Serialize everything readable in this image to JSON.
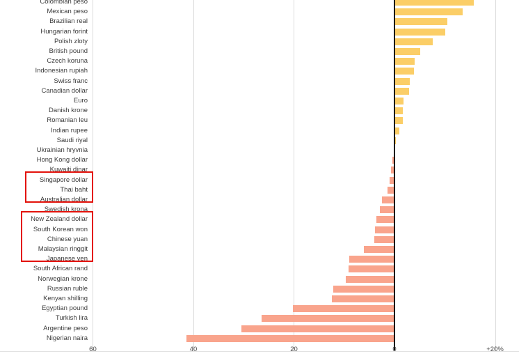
{
  "chart_data": {
    "type": "bar",
    "orientation": "horizontal",
    "unit_suffix_on_last_tick": "+20%",
    "categories": [
      "Colombian peso",
      "Mexican peso",
      "Brazilian real",
      "Hungarian forint",
      "Polish zloty",
      "British pound",
      "Czech koruna",
      "Indonesian rupiah",
      "Swiss franc",
      "Canadian dollar",
      "Euro",
      "Danish krone",
      "Romanian leu",
      "Indian rupee",
      "Saudi riyal",
      "Ukrainian hryvnia",
      "Hong Kong dollar",
      "Kuwaiti dinar",
      "Singapore dollar",
      "Thai baht",
      "Australian dollar",
      "Swedish krona",
      "New Zealand dollar",
      "South Korean won",
      "Chinese yuan",
      "Malaysian ringgit",
      "Japanese yen",
      "South African rand",
      "Norwegian krone",
      "Russian ruble",
      "Kenyan shilling",
      "Egyptian pound",
      "Turkish lira",
      "Argentine peso",
      "Nigerian naira"
    ],
    "values": [
      15.7,
      13.4,
      10.4,
      9.9,
      7.5,
      5.0,
      3.9,
      3.8,
      2.9,
      2.7,
      1.7,
      1.5,
      1.5,
      0.8,
      0.1,
      0.0,
      -0.3,
      -0.6,
      -0.8,
      -1.3,
      -2.4,
      -2.8,
      -3.5,
      -3.8,
      -3.9,
      -6.0,
      -8.9,
      -9.0,
      -9.6,
      -12.0,
      -12.3,
      -20.0,
      -26.3,
      -30.3,
      -41.3
    ],
    "xlim": [
      -60,
      25
    ],
    "ticks": {
      "values": [
        -60,
        -40,
        -20,
        0,
        20
      ],
      "labels": [
        "60",
        "40",
        "20",
        "0",
        "+20%"
      ]
    },
    "grid": "vertical-gridlines-on",
    "legend": "none",
    "zero_line": true,
    "colors": {
      "positive": "#fbce67",
      "negative": "#f9a48c",
      "highlight_box": "#e3120b",
      "gridline": "#dcdcdc",
      "zero_line": "#121212",
      "label_text": "#3b3b3b",
      "tick_text": "#4d4d4d"
    },
    "highlight_groups": [
      [
        "Singapore dollar",
        "Thai baht",
        "Australian dollar"
      ],
      [
        "New Zealand dollar",
        "South Korean won",
        "Chinese yuan",
        "Malaysian ringgit",
        "Japanese yen"
      ]
    ]
  }
}
